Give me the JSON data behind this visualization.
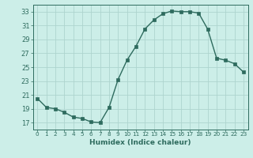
{
  "x": [
    0,
    1,
    2,
    3,
    4,
    5,
    6,
    7,
    8,
    9,
    10,
    11,
    12,
    13,
    14,
    15,
    16,
    17,
    18,
    19,
    20,
    21,
    22,
    23
  ],
  "y": [
    20.5,
    19.2,
    19.0,
    18.5,
    17.8,
    17.6,
    17.1,
    17.0,
    19.2,
    23.2,
    26.0,
    28.0,
    30.5,
    31.8,
    32.7,
    33.1,
    33.0,
    33.0,
    32.8,
    30.5,
    26.3,
    26.0,
    25.5,
    24.3
  ],
  "line_color": "#2e6b5e",
  "marker": "s",
  "marker_size": 2.2,
  "bg_color": "#cceee8",
  "grid_color": "#aed4ce",
  "xlabel": "Humidex (Indice chaleur)",
  "xlim": [
    -0.5,
    23.5
  ],
  "ylim": [
    16.0,
    34.0
  ],
  "yticks": [
    17,
    19,
    21,
    23,
    25,
    27,
    29,
    31,
    33
  ],
  "xticks": [
    0,
    1,
    2,
    3,
    4,
    5,
    6,
    7,
    8,
    9,
    10,
    11,
    12,
    13,
    14,
    15,
    16,
    17,
    18,
    19,
    20,
    21,
    22,
    23
  ],
  "xlabel_fontsize": 6.5,
  "ytick_fontsize": 6.0,
  "xtick_fontsize": 5.2
}
